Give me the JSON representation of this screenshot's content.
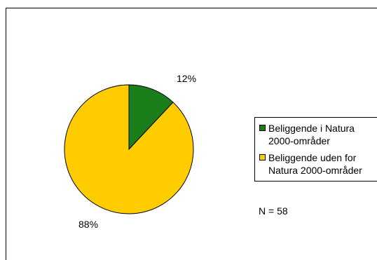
{
  "chart_data": {
    "type": "pie",
    "title": "",
    "slices": [
      {
        "label": "Beliggende i Natura 2000-områder",
        "value": 12,
        "display": "12%",
        "color": "#1a7f1a"
      },
      {
        "label": "Beliggende uden for Natura 2000-områder",
        "value": 88,
        "display": "88%",
        "color": "#ffcc00"
      }
    ],
    "legend_position": "right",
    "note": "N = 58"
  },
  "legend": {
    "items": [
      {
        "line1": "Beliggende i Natura",
        "line2": "2000-områder",
        "color": "#1a7f1a"
      },
      {
        "line1": "Beliggende uden for",
        "line2": "Natura 2000-områder",
        "color": "#ffcc00"
      }
    ]
  }
}
